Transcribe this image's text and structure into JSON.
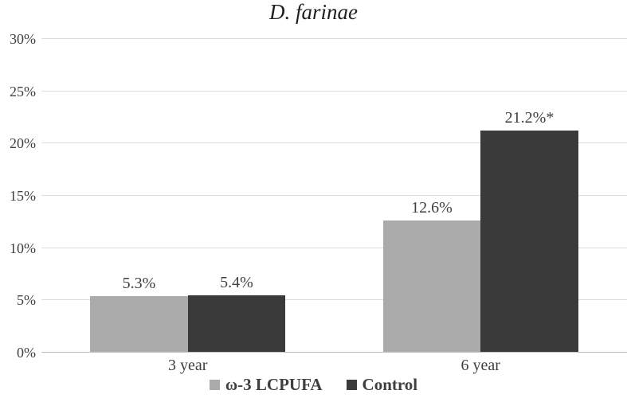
{
  "chart_data": {
    "type": "bar",
    "title": "D. farinae",
    "categories": [
      "3 year",
      "6 year"
    ],
    "series": [
      {
        "name": "ω-3 LCPUFA",
        "values": [
          5.3,
          12.6
        ],
        "labels": [
          "5.3%",
          "12.6%"
        ],
        "color": "#ababab"
      },
      {
        "name": "Control",
        "values": [
          5.4,
          21.2
        ],
        "labels": [
          "5.4%",
          "21.2%*"
        ],
        "color": "#3a3a3a"
      }
    ],
    "ylim": [
      0,
      30
    ],
    "yticks": [
      0,
      5,
      10,
      15,
      20,
      25,
      30
    ],
    "ytick_labels": [
      "0%",
      "5%",
      "10%",
      "15%",
      "20%",
      "25%",
      "30%"
    ],
    "xlabel": "",
    "ylabel": "",
    "grid": true,
    "legend_position": "bottom"
  },
  "colors": {
    "gridline": "#dcdcdc",
    "axis_line": "#bfbfbf",
    "label_text": "#3f3f3f",
    "title_text": "#1f1f1f",
    "background": "#ffffff"
  }
}
